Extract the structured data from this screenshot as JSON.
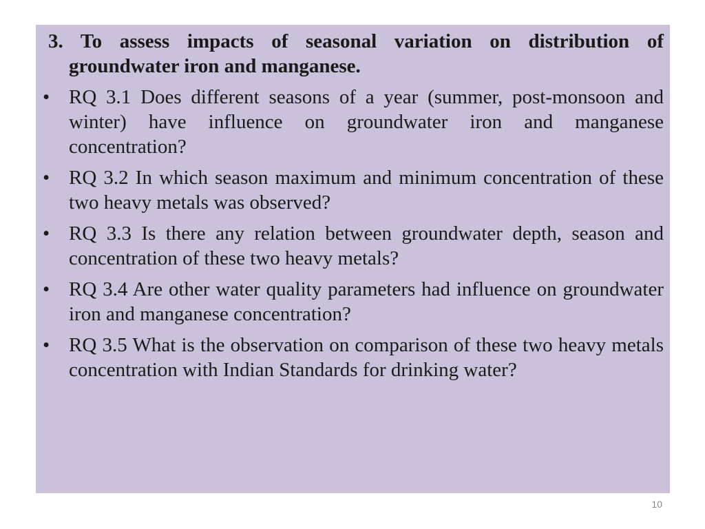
{
  "heading": "3. To assess impacts of seasonal variation on distribution of groundwater iron and manganese.",
  "bullets": [
    "RQ 3.1 Does different seasons of a year (summer, post-monsoon and winter) have influence on groundwater iron and manganese concentration?",
    "RQ 3.2 In which season maximum and minimum concentration of these two heavy metals was observed?",
    "RQ 3.3 Is there any relation between groundwater depth, season and concentration of these two heavy metals?",
    "RQ 3.4 Are other water quality parameters had influence on groundwater iron and manganese concentration?",
    "RQ 3.5 What is the observation on comparison of these two heavy metals concentration with Indian Standards for drinking water?"
  ],
  "page_number": "10"
}
